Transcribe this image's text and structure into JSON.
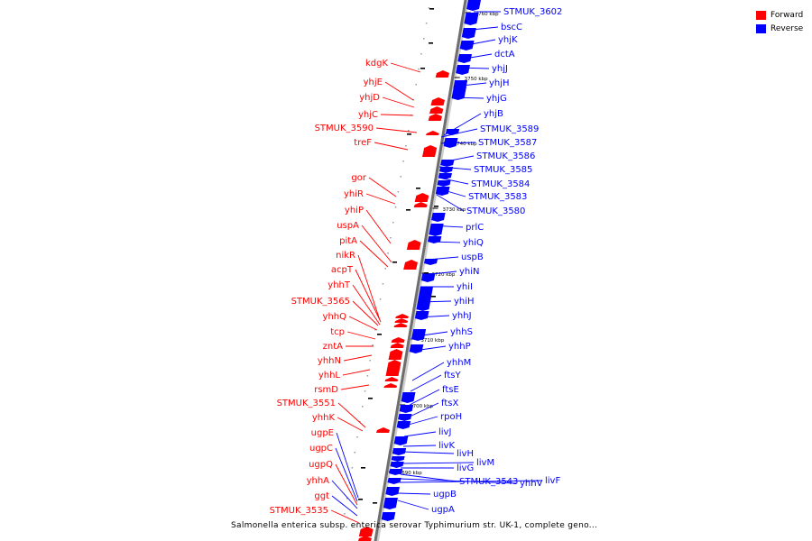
{
  "legend": [
    {
      "label": "Forward",
      "color": "#ff0000"
    },
    {
      "label": "Reverse",
      "color": "#0000ff"
    }
  ],
  "caption": "Salmonella enterica subsp. enterica serovar Typhimurium str. UK-1, complete geno...",
  "colors": {
    "forward": "#ff0000",
    "reverse": "#0000ff",
    "backbone": "#999999"
  },
  "ticks": [
    "3760 kbp",
    "3750 kbp",
    "3740 kbp",
    "3730 kbp",
    "3720 kbp",
    "3710 kbp",
    "3700 kbp",
    "3690 kbp"
  ],
  "forward_genes": [
    "kdgK",
    "yhjE",
    "yhjD",
    "yhjC",
    "STMUK_3590",
    "treF",
    "gor",
    "yhiR",
    "yhiP",
    "uspA",
    "pitA",
    "nikR",
    "acpT",
    "yhhT",
    "STMUK_3565",
    "yhhQ",
    "tcp",
    "zntA",
    "yhhN",
    "yhhL",
    "rsmD",
    "STMUK_3551",
    "yhhK",
    "ugpE",
    "ugpC",
    "ugpQ",
    "yhhA",
    "ggt",
    "STMUK_3535"
  ],
  "reverse_genes": [
    "STMUK_3602",
    "bscC",
    "yhjK",
    "dctA",
    "yhjJ",
    "yhjH",
    "yhjG",
    "yhjB",
    "STMUK_3589",
    "STMUK_3587",
    "STMUK_3586",
    "STMUK_3585",
    "STMUK_3584",
    "STMUK_3583",
    "STMUK_3580",
    "prlC",
    "yhiQ",
    "uspB",
    "yhiN",
    "yhiI",
    "yhiH",
    "yhhJ",
    "yhhS",
    "yhhP",
    "yhhM",
    "ftsY",
    "ftsE",
    "ftsX",
    "rpoH",
    "livJ",
    "livK",
    "livH",
    "livM",
    "livG",
    "STMUK_3543",
    "yhhV",
    "livF",
    "ugpB",
    "ugpA"
  ]
}
